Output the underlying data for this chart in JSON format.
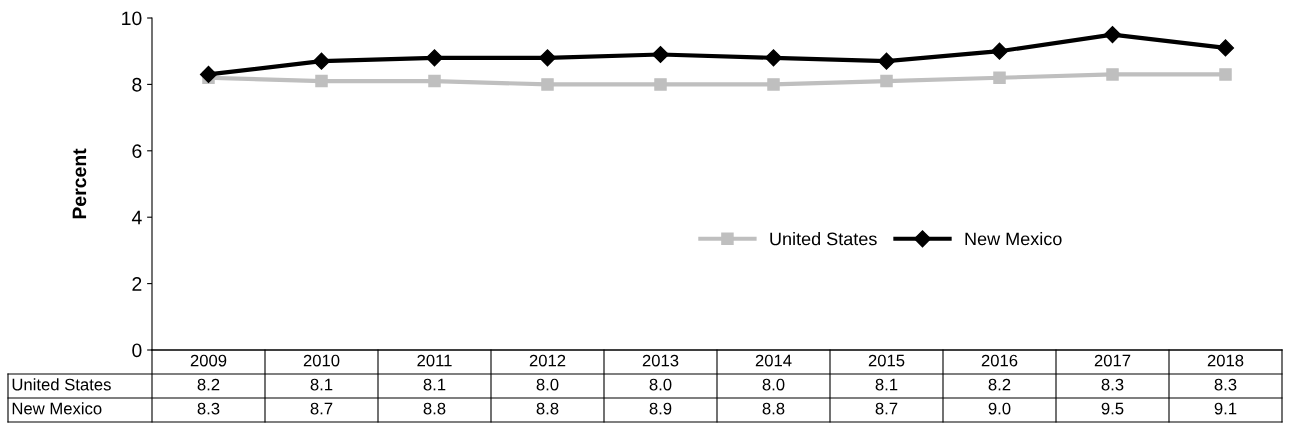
{
  "chart_data": {
    "type": "line",
    "ylabel": "Percent",
    "categories": [
      "2009",
      "2010",
      "2011",
      "2012",
      "2013",
      "2014",
      "2015",
      "2016",
      "2017",
      "2018"
    ],
    "series": [
      {
        "name": "United States",
        "color": "#bfbfbf",
        "marker": "square",
        "values": [
          8.2,
          8.1,
          8.1,
          8.0,
          8.0,
          8.0,
          8.1,
          8.2,
          8.3,
          8.3
        ],
        "value_labels": [
          "8.2",
          "8.1",
          "8.1",
          "8.0",
          "8.0",
          "8.0",
          "8.1",
          "8.2",
          "8.3",
          "8.3"
        ]
      },
      {
        "name": "New Mexico",
        "color": "#000000",
        "marker": "diamond",
        "values": [
          8.3,
          8.7,
          8.8,
          8.8,
          8.9,
          8.8,
          8.7,
          9.0,
          9.5,
          9.1
        ],
        "value_labels": [
          "8.3",
          "8.7",
          "8.8",
          "8.8",
          "8.9",
          "8.8",
          "8.7",
          "9.0",
          "9.5",
          "9.1"
        ]
      }
    ],
    "ylim": [
      0,
      10
    ],
    "yticks": [
      0,
      2,
      4,
      6,
      8,
      10
    ],
    "grid": false,
    "legend": "right",
    "line_style": "solid"
  }
}
